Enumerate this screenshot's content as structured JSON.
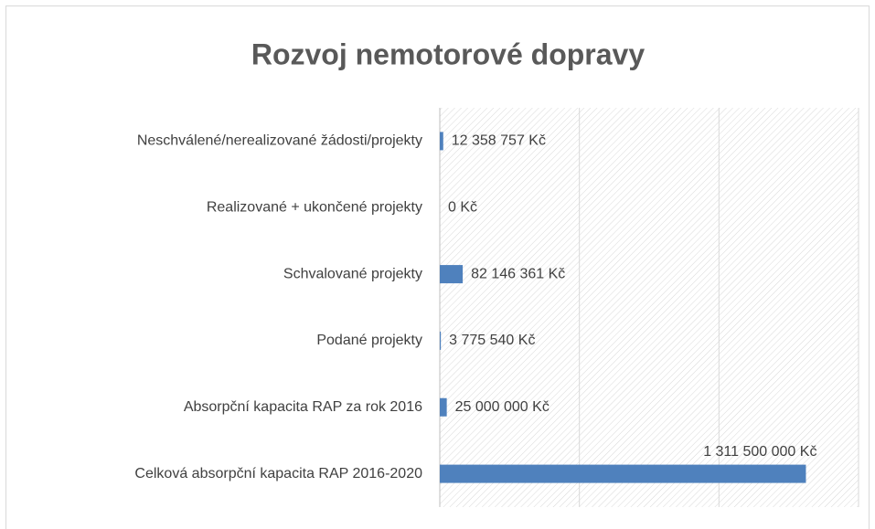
{
  "chart_data": {
    "type": "bar",
    "orientation": "horizontal",
    "title": "Rozvoj nemotorové dopravy",
    "categories": [
      "Neschválené/nerealizované žádosti/projekty",
      "Realizované + ukončené projekty",
      "Schvalované projekty",
      "Podané projekty",
      "Absorpční kapacita RAP za rok 2016",
      "Celková absorpční kapacita RAP 2016-2020"
    ],
    "values": [
      12358757,
      0,
      82146361,
      3775540,
      25000000,
      1311500000
    ],
    "value_labels": [
      "12 358 757 Kč",
      "0 Kč",
      "82 146 361 Kč",
      "3 775 540 Kč",
      "25 000 000 Kč",
      "1 311 500 000 Kč"
    ],
    "color": "#4f81bd",
    "xlim": [
      0,
      1500000000
    ],
    "xticks": [
      0,
      500000000,
      1000000000,
      1500000000
    ],
    "grid": true
  }
}
